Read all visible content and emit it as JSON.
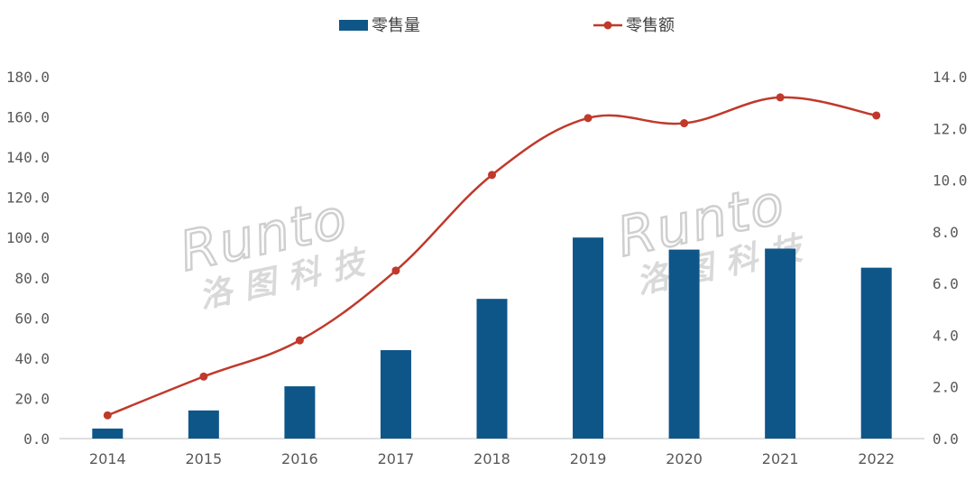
{
  "chart_data": {
    "type": "bar",
    "categories": [
      "2014",
      "2015",
      "2016",
      "2017",
      "2018",
      "2019",
      "2020",
      "2021",
      "2022"
    ],
    "series": [
      {
        "name": "零售量",
        "type": "bar",
        "axis": "left",
        "values": [
          5,
          14,
          26,
          44,
          69.5,
          100,
          94,
          94.5,
          85
        ]
      },
      {
        "name": "零售额",
        "type": "line",
        "axis": "right",
        "values": [
          0.9,
          2.4,
          3.8,
          6.5,
          10.2,
          12.4,
          12.2,
          13.2,
          12.5
        ]
      }
    ],
    "ylim_left": [
      0,
      180
    ],
    "yticks_left": [
      "0.0",
      "20.0",
      "40.0",
      "60.0",
      "80.0",
      "100.0",
      "120.0",
      "140.0",
      "160.0",
      "180.0"
    ],
    "ylim_right": [
      0,
      14
    ],
    "yticks_right": [
      "0.0",
      "2.0",
      "4.0",
      "6.0",
      "8.0",
      "10.0",
      "12.0",
      "14.0"
    ],
    "legend_position": "top-center",
    "grid": false,
    "colors": {
      "bar": "#0f5688",
      "line": "#c0392b",
      "axis": "#bfbfbf"
    }
  },
  "watermark": {
    "latin": "Runto",
    "cjk": "洛图科技"
  }
}
